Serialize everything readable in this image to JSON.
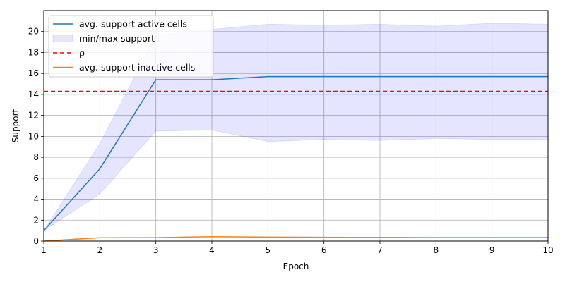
{
  "chart_data": {
    "type": "line",
    "title": "",
    "xlabel": "Epoch",
    "ylabel": "Support",
    "xlim": [
      1,
      10
    ],
    "ylim": [
      0,
      22
    ],
    "x_ticks": [
      1,
      2,
      3,
      4,
      5,
      6,
      7,
      8,
      9,
      10
    ],
    "y_ticks": [
      0,
      2,
      4,
      6,
      8,
      10,
      12,
      14,
      16,
      18,
      20
    ],
    "grid": true,
    "legend_position": "top-left",
    "x": [
      1,
      2,
      3,
      4,
      5,
      6,
      7,
      8,
      9,
      10
    ],
    "series": [
      {
        "name": "avg. support active cells",
        "kind": "line",
        "color": "#1f77b4",
        "values": [
          1.0,
          6.9,
          15.4,
          15.4,
          15.7,
          15.7,
          15.7,
          15.7,
          15.7,
          15.7
        ]
      },
      {
        "name": "min/max support",
        "kind": "band",
        "color": "#0000ff",
        "lower": [
          1.0,
          4.5,
          10.5,
          10.6,
          9.5,
          9.7,
          9.6,
          9.8,
          9.7,
          9.7
        ],
        "upper": [
          1.0,
          9.3,
          19.6,
          20.2,
          20.7,
          20.6,
          20.7,
          20.5,
          20.8,
          20.7
        ]
      },
      {
        "name": "ρ",
        "kind": "hline",
        "color": "#ff0000",
        "value": 14.3
      },
      {
        "name": "avg. support inactive cells",
        "kind": "line",
        "color": "#ff7f0e",
        "values": [
          0.0,
          0.32,
          0.33,
          0.42,
          0.38,
          0.36,
          0.35,
          0.34,
          0.34,
          0.34
        ]
      }
    ]
  }
}
